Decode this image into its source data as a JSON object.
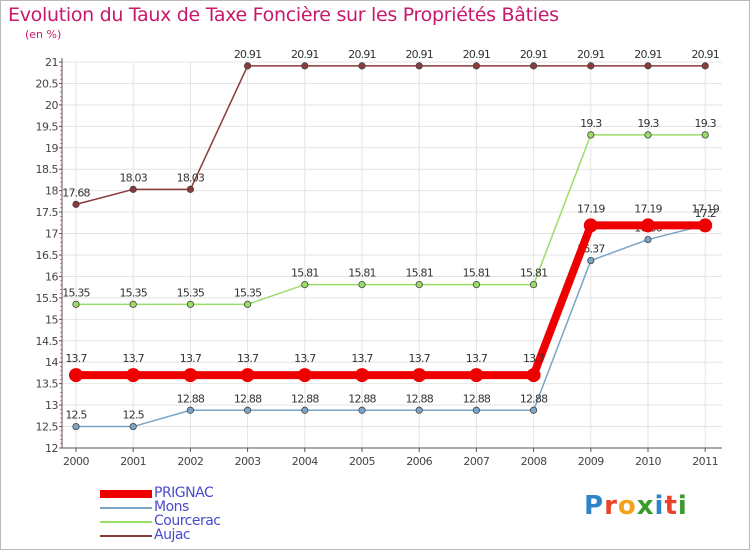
{
  "header": {
    "title": "Evolution du Taux de Taxe Foncière sur les Propriétés Bâties",
    "subtitle": "(en %)"
  },
  "logo": {
    "text": "Proxiti",
    "letters": [
      {
        "char": "P",
        "color": "#2f84c7"
      },
      {
        "char": "r",
        "color": "#e8432b"
      },
      {
        "char": "o",
        "color": "#f2a21b"
      },
      {
        "char": "x",
        "color": "#3a9a2c"
      },
      {
        "char": "i",
        "color": "#2f84c7"
      },
      {
        "char": "t",
        "color": "#e8432b"
      },
      {
        "char": "i",
        "color": "#3a9a2c"
      }
    ]
  },
  "chart_data": {
    "type": "line",
    "title": "Evolution du Taux de Taxe Foncière sur les Propriétés Bâties",
    "ylabel": "(en %)",
    "xlabel": "",
    "x": [
      "2000",
      "2001",
      "2002",
      "2003",
      "2004",
      "2005",
      "2006",
      "2007",
      "2008",
      "2009",
      "2010",
      "2011"
    ],
    "ylim": [
      12,
      21
    ],
    "yticks": [
      "12",
      "12.5",
      "13",
      "13.5",
      "14",
      "14.5",
      "15",
      "15.5",
      "16",
      "16.5",
      "17",
      "17.5",
      "18",
      "18.5",
      "19",
      "19.5",
      "20",
      "20.5",
      "21"
    ],
    "grid": true,
    "legend_position": "bottom-left",
    "series": [
      {
        "name": "PRIGNAC",
        "color": "#ee0000",
        "emphasis": true,
        "values": [
          13.7,
          13.7,
          13.7,
          13.7,
          13.7,
          13.7,
          13.7,
          13.7,
          13.7,
          17.19,
          17.19,
          17.19
        ],
        "labels": [
          "13.7",
          "13.7",
          "13.7",
          "13.7",
          "13.7",
          "13.7",
          "13.7",
          "13.7",
          "13.7",
          "17.19",
          "17.19",
          "17.19"
        ]
      },
      {
        "name": "Mons",
        "color": "#7aa5c8",
        "values": [
          12.5,
          12.5,
          12.88,
          12.88,
          12.88,
          12.88,
          12.88,
          12.88,
          12.88,
          16.37,
          16.86,
          17.2
        ],
        "labels": [
          "12.5",
          "12.5",
          "12.88",
          "12.88",
          "12.88",
          "12.88",
          "12.88",
          "12.88",
          "12.88",
          "16.37",
          "16.86",
          "17.2"
        ]
      },
      {
        "name": "Courcerac",
        "color": "#99dd66",
        "values": [
          15.35,
          15.35,
          15.35,
          15.35,
          15.81,
          15.81,
          15.81,
          15.81,
          15.81,
          19.3,
          19.3,
          19.3
        ],
        "labels": [
          "15.35",
          "15.35",
          "15.35",
          "15.35",
          "15.81",
          "15.81",
          "15.81",
          "15.81",
          "15.81",
          "19.3",
          "19.3",
          "19.3"
        ]
      },
      {
        "name": "Aujac",
        "color": "#8a3a3a",
        "values": [
          17.68,
          18.03,
          18.03,
          20.91,
          20.91,
          20.91,
          20.91,
          20.91,
          20.91,
          20.91,
          20.91,
          20.91
        ],
        "labels": [
          "17.68",
          "18.03",
          "18.03",
          "20.91",
          "20.91",
          "20.91",
          "20.91",
          "20.91",
          "20.91",
          "20.91",
          "20.91",
          "20.91"
        ]
      }
    ]
  }
}
